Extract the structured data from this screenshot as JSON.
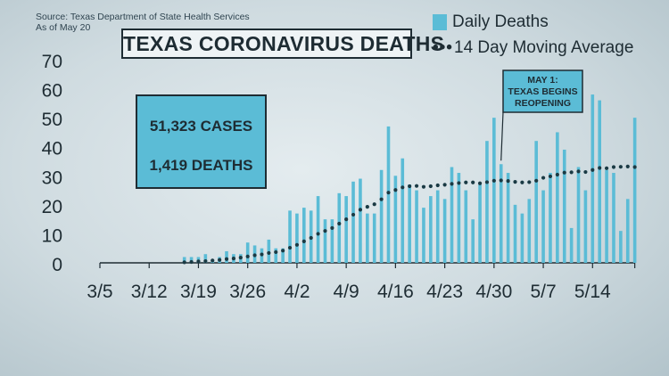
{
  "source": {
    "line1": "Source: Texas Department of State Health Services",
    "line2": "As of May 20"
  },
  "title": "TEXAS CORONAVIRUS DEATHS",
  "legend": {
    "bars": "Daily Deaths",
    "line": "14 Day Moving Average"
  },
  "stats": {
    "cases": "51,323 CASES",
    "deaths": "1,419 DEATHS"
  },
  "callout": {
    "lines": [
      "MAY 1:",
      "TEXAS BEGINS",
      "REOPENING"
    ]
  },
  "colors": {
    "bar": "#5bbcd6",
    "line": "#1a3a44",
    "text": "#1e2c33"
  },
  "chart_data": {
    "type": "bar",
    "title": "TEXAS CORONAVIRUS DEATHS",
    "ylim": [
      0,
      70
    ],
    "yticks": [
      0,
      10,
      20,
      30,
      40,
      50,
      60,
      70
    ],
    "xticks": [
      "3/5",
      "3/12",
      "3/19",
      "3/26",
      "4/2",
      "4/9",
      "4/16",
      "4/23",
      "4/30",
      "5/7",
      "5/14"
    ],
    "x_start": "3/5",
    "x_end": "5/20",
    "legend_position": "top-right",
    "series": [
      {
        "name": "Daily Deaths",
        "type": "bar",
        "dates": [
          "3/17",
          "3/18",
          "3/19",
          "3/20",
          "3/21",
          "3/22",
          "3/23",
          "3/24",
          "3/25",
          "3/26",
          "3/27",
          "3/28",
          "3/29",
          "3/30",
          "3/31",
          "4/1",
          "4/2",
          "4/3",
          "4/4",
          "4/5",
          "4/6",
          "4/7",
          "4/8",
          "4/9",
          "4/10",
          "4/11",
          "4/12",
          "4/13",
          "4/14",
          "4/15",
          "4/16",
          "4/17",
          "4/18",
          "4/19",
          "4/20",
          "4/21",
          "4/22",
          "4/23",
          "4/24",
          "4/25",
          "4/26",
          "4/27",
          "4/28",
          "4/29",
          "4/30",
          "5/1",
          "5/2",
          "5/3",
          "5/4",
          "5/5",
          "5/6",
          "5/7",
          "5/8",
          "5/9",
          "5/10",
          "5/11",
          "5/12",
          "5/13",
          "5/14",
          "5/15",
          "5/16",
          "5/17",
          "5/18",
          "5/19",
          "5/20"
        ],
        "values": [
          2,
          2,
          2,
          3,
          1,
          2,
          4,
          3,
          3,
          7,
          6,
          5,
          8,
          5,
          5,
          18,
          17,
          19,
          18,
          23,
          15,
          15,
          24,
          23,
          28,
          29,
          17,
          17,
          32,
          47,
          30,
          36,
          27,
          25,
          19,
          23,
          25,
          22,
          33,
          31,
          25,
          15,
          27,
          42,
          50,
          34,
          31,
          20,
          17,
          22,
          42,
          25,
          31,
          45,
          39,
          12,
          33,
          25,
          58,
          56,
          32,
          31,
          11,
          22,
          50
        ]
      },
      {
        "name": "14 Day Moving Average",
        "type": "line",
        "dates": [
          "3/17",
          "3/18",
          "3/19",
          "3/20",
          "3/21",
          "3/22",
          "3/23",
          "3/24",
          "3/25",
          "3/26",
          "3/27",
          "3/28",
          "3/29",
          "3/30",
          "3/31",
          "4/1",
          "4/2",
          "4/3",
          "4/4",
          "4/5",
          "4/6",
          "4/7",
          "4/8",
          "4/9",
          "4/10",
          "4/11",
          "4/12",
          "4/13",
          "4/14",
          "4/15",
          "4/16",
          "4/17",
          "4/18",
          "4/19",
          "4/20",
          "4/21",
          "4/22",
          "4/23",
          "4/24",
          "4/25",
          "4/26",
          "4/27",
          "4/28",
          "4/29",
          "4/30",
          "5/1",
          "5/2",
          "5/3",
          "5/4",
          "5/5",
          "5/6",
          "5/7",
          "5/8",
          "5/9",
          "5/10",
          "5/11",
          "5/12",
          "5/13",
          "5/14",
          "5/15",
          "5/16",
          "5/17",
          "5/18",
          "5/19",
          "5/20"
        ],
        "values": [
          0.2,
          0.3,
          0.5,
          0.6,
          0.8,
          1.0,
          1.3,
          1.5,
          1.8,
          2.2,
          2.6,
          2.9,
          3.4,
          3.7,
          4.2,
          5.2,
          6.2,
          7.4,
          8.6,
          10.0,
          11.0,
          12.0,
          13.5,
          15.0,
          16.6,
          18.3,
          19.3,
          20.2,
          21.9,
          24.2,
          25.1,
          26.0,
          26.4,
          26.5,
          26.2,
          26.4,
          26.7,
          26.9,
          27.2,
          27.5,
          27.7,
          27.7,
          27.4,
          27.8,
          28.3,
          28.4,
          28.2,
          27.9,
          27.7,
          27.8,
          28.3,
          29.3,
          29.8,
          30.4,
          31.1,
          31.2,
          31.5,
          31.3,
          32.0,
          32.7,
          32.6,
          33.0,
          33.1,
          33.2,
          33.0
        ]
      }
    ],
    "annotations": [
      {
        "text": "MAY 1: TEXAS BEGINS REOPENING",
        "date": "5/1"
      }
    ]
  }
}
